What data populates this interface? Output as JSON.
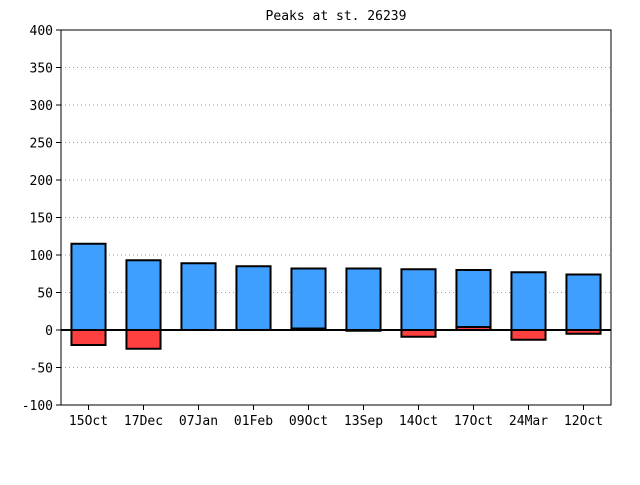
{
  "chart_data": {
    "type": "bar",
    "title": "Peaks at st. 26239",
    "xlabel": "",
    "ylabel": "",
    "ylim": [
      -100,
      400
    ],
    "yticks": [
      -100,
      -50,
      0,
      50,
      100,
      150,
      200,
      250,
      300,
      350,
      400
    ],
    "grid": true,
    "categories": [
      "15Oct",
      "17Dec",
      "07Jan",
      "01Feb",
      "09Oct",
      "13Sep",
      "14Oct",
      "17Oct",
      "24Mar",
      "12Oct"
    ],
    "series": [
      {
        "color": "#3f9fff",
        "values": [
          115,
          93,
          89,
          85,
          82,
          82,
          81,
          80,
          77,
          74
        ]
      },
      {
        "color": "#ff4040",
        "values": [
          -20,
          -25,
          0,
          0,
          2,
          -1,
          -9,
          4,
          -13,
          -5
        ]
      }
    ],
    "baseline_color": "#000000",
    "grid_color": "#a0a0a0"
  }
}
